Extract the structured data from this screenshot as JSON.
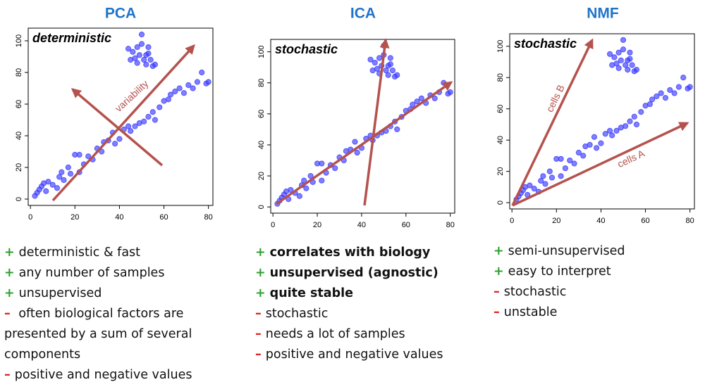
{
  "chart_data": [
    {
      "type": "scatter",
      "title": "PCA",
      "annotation": "deterministic",
      "arrow_labels": [
        "variability"
      ],
      "color": "#3b3bff",
      "x": [
        2,
        3,
        4,
        5,
        6,
        7,
        8,
        10,
        12,
        13,
        14,
        15,
        17,
        18,
        20,
        22,
        22,
        24,
        26,
        28,
        30,
        32,
        33,
        35,
        37,
        38,
        40,
        42,
        44,
        45,
        47,
        49,
        51,
        53,
        55,
        56,
        58,
        60,
        62,
        63,
        65,
        67,
        69,
        71,
        73,
        75,
        77,
        79,
        80,
        44,
        46,
        47,
        48,
        49,
        50,
        50,
        51,
        52,
        52,
        53,
        55,
        56,
        45,
        48,
        54,
        53
      ],
      "y": [
        2,
        4,
        6,
        8,
        10,
        5,
        11,
        9,
        7,
        14,
        17,
        12,
        20,
        16,
        28,
        17,
        28,
        22,
        27,
        25,
        32,
        30,
        36,
        37,
        42,
        35,
        38,
        44,
        46,
        43,
        46,
        48,
        49,
        52,
        55,
        50,
        58,
        62,
        63,
        66,
        68,
        70,
        67,
        72,
        70,
        74,
        80,
        73,
        74,
        95,
        93,
        89,
        96,
        91,
        98,
        104,
        88,
        91,
        85,
        92,
        84,
        85,
        88,
        86,
        88,
        96
      ],
      "xlim": [
        -1,
        82
      ],
      "ylim": [
        -4,
        108
      ],
      "xticks": [
        0,
        20,
        40,
        60,
        80
      ],
      "yticks": [
        0,
        20,
        40,
        60,
        80,
        100
      ]
    },
    {
      "type": "scatter",
      "title": "ICA",
      "annotation": "stochastic",
      "arrow_labels": [],
      "color": "#3b3bff",
      "x": [
        2,
        3,
        4,
        5,
        6,
        7,
        8,
        10,
        12,
        13,
        14,
        15,
        17,
        18,
        20,
        22,
        22,
        24,
        26,
        28,
        30,
        32,
        33,
        35,
        37,
        38,
        40,
        42,
        44,
        45,
        47,
        49,
        51,
        53,
        55,
        56,
        58,
        60,
        62,
        63,
        65,
        67,
        69,
        71,
        73,
        75,
        77,
        79,
        80,
        44,
        46,
        47,
        48,
        49,
        50,
        50,
        51,
        52,
        52,
        53,
        55,
        56,
        45,
        48,
        54,
        53
      ],
      "y": [
        2,
        4,
        6,
        8,
        10,
        5,
        11,
        9,
        7,
        14,
        17,
        12,
        20,
        16,
        28,
        17,
        28,
        22,
        27,
        25,
        32,
        30,
        36,
        37,
        42,
        35,
        38,
        44,
        46,
        43,
        46,
        48,
        49,
        52,
        55,
        50,
        58,
        62,
        63,
        66,
        68,
        70,
        67,
        72,
        70,
        74,
        80,
        73,
        74,
        95,
        93,
        89,
        96,
        91,
        98,
        104,
        88,
        91,
        85,
        92,
        84,
        85,
        88,
        86,
        88,
        96
      ],
      "xlim": [
        -1,
        82
      ],
      "ylim": [
        -4,
        108
      ],
      "xticks": [
        0,
        20,
        40,
        60,
        80
      ],
      "yticks": [
        0,
        20,
        40,
        60,
        80,
        100
      ]
    },
    {
      "type": "scatter",
      "title": "NMF",
      "annotation": "stochastic",
      "arrow_labels": [
        "cells B",
        "cells A"
      ],
      "color": "#3b3bff",
      "x": [
        2,
        3,
        4,
        5,
        6,
        7,
        8,
        10,
        12,
        13,
        14,
        15,
        17,
        18,
        20,
        22,
        22,
        24,
        26,
        28,
        30,
        32,
        33,
        35,
        37,
        38,
        40,
        42,
        44,
        45,
        47,
        49,
        51,
        53,
        55,
        56,
        58,
        60,
        62,
        63,
        65,
        67,
        69,
        71,
        73,
        75,
        77,
        79,
        80,
        44,
        46,
        47,
        48,
        49,
        50,
        50,
        51,
        52,
        52,
        53,
        55,
        56,
        45,
        48,
        54,
        53
      ],
      "y": [
        2,
        4,
        6,
        8,
        10,
        5,
        11,
        9,
        7,
        14,
        17,
        12,
        20,
        16,
        28,
        17,
        28,
        22,
        27,
        25,
        32,
        30,
        36,
        37,
        42,
        35,
        38,
        44,
        46,
        43,
        46,
        48,
        49,
        52,
        55,
        50,
        58,
        62,
        63,
        66,
        68,
        70,
        67,
        72,
        70,
        74,
        80,
        73,
        74,
        95,
        93,
        89,
        96,
        91,
        98,
        104,
        88,
        91,
        85,
        92,
        84,
        85,
        88,
        86,
        88,
        96
      ],
      "xlim": [
        -1,
        82
      ],
      "ylim": [
        -4,
        108
      ],
      "xticks": [
        0,
        20,
        40,
        60,
        80
      ],
      "yticks": [
        0,
        20,
        40,
        60,
        80,
        100
      ]
    }
  ],
  "notes": [
    [
      {
        "sign": "+",
        "text": "deterministic & fast"
      },
      {
        "sign": "+",
        "text": "any number of samples"
      },
      {
        "sign": "+",
        "text": "unsupervised"
      },
      {
        "sign": "–",
        "text": " often biological factors are presented by a sum of several components"
      },
      {
        "sign": "–",
        "text": "positive and negative values"
      }
    ],
    [
      {
        "sign": "+",
        "text": "correlates with biology",
        "bold": true
      },
      {
        "sign": "+",
        "text": "unsupervised (agnostic)",
        "bold": true
      },
      {
        "sign": "+",
        "text": "quite stable",
        "bold": true
      },
      {
        "sign": "–",
        "text": "stochastic"
      },
      {
        "sign": "–",
        "text": "needs a lot of samples"
      },
      {
        "sign": "–",
        "text": "positive and negative values"
      }
    ],
    [
      {
        "sign": "+",
        "text": "semi-unsupervised"
      },
      {
        "sign": "+",
        "text": "easy to interpret"
      },
      {
        "sign": "–",
        "text": "stochastic"
      },
      {
        "sign": "–",
        "text": "unstable"
      }
    ]
  ]
}
